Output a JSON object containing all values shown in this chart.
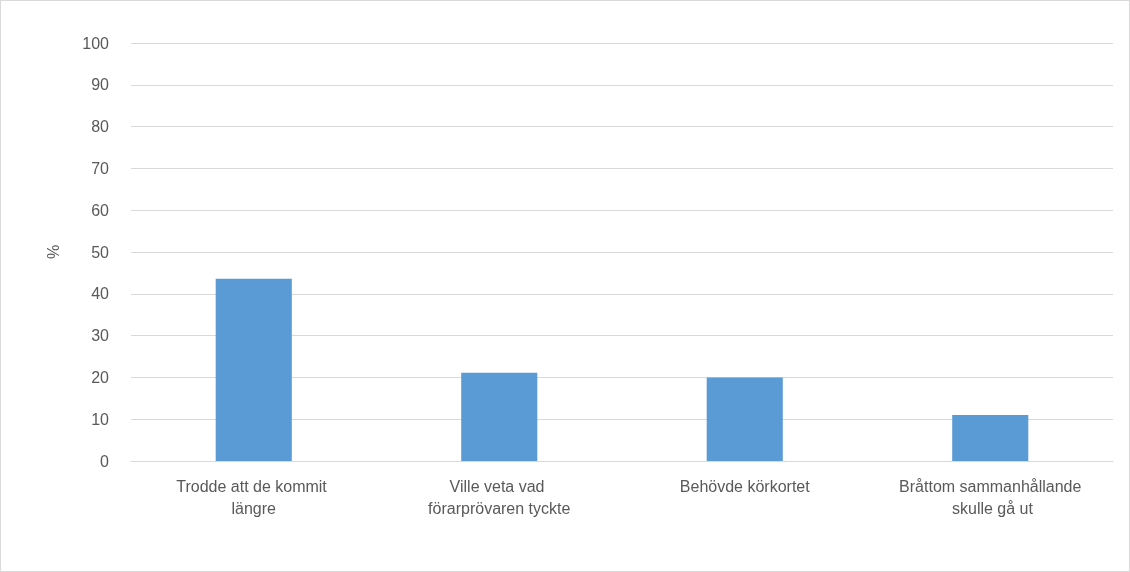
{
  "chart_data": {
    "type": "bar",
    "ylabel": "%",
    "categories": [
      "Trodde att de kommit längre",
      "Ville veta vad förarprövaren tyckte",
      "Behövde körkortet",
      "Bråttom sammanhållande skulle gå ut"
    ],
    "values": [
      43.6,
      21.1,
      20,
      11
    ],
    "color": "#5b9bd5",
    "ylim": [
      0,
      100
    ],
    "yticks": [
      0,
      10,
      20,
      30,
      40,
      50,
      60,
      70,
      80,
      90,
      100
    ],
    "grid": "y"
  }
}
